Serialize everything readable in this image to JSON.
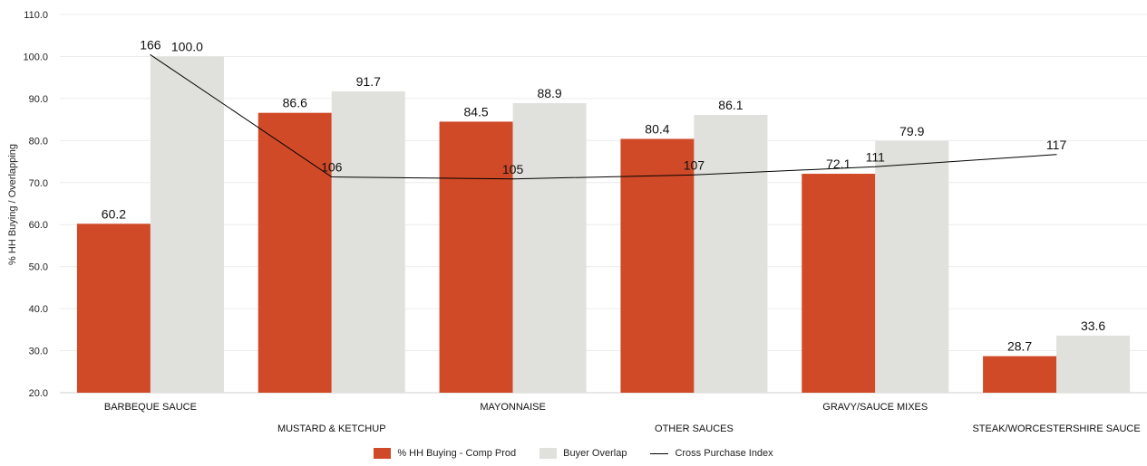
{
  "chart_data": {
    "type": "bar",
    "y_axis_label": "% HH Buying / Overlapping",
    "ylim": [
      20,
      110
    ],
    "ytick_step": 10,
    "categories": [
      "BARBEQUE SAUCE",
      "MUSTARD & KETCHUP",
      "MAYONNAISE",
      "OTHER SAUCES",
      "GRAVY/SAUCE MIXES",
      "STEAK/WORCESTERSHIRE SAUCE"
    ],
    "category_label_rows": [
      "top",
      "bottom",
      "top",
      "bottom",
      "top",
      "bottom"
    ],
    "series": [
      {
        "name": "% HH Buying - Comp Prod",
        "kind": "bar",
        "color": "#d04a28",
        "values": [
          60.2,
          86.6,
          84.5,
          80.4,
          72.1,
          28.7
        ],
        "labels": [
          "60.2",
          "86.6",
          "84.5",
          "80.4",
          "72.1",
          "28.7"
        ]
      },
      {
        "name": "Buyer Overlap",
        "kind": "bar",
        "color": "#e0e0dc",
        "values": [
          100.0,
          91.7,
          88.9,
          86.1,
          79.9,
          33.6
        ],
        "labels": [
          "100.0",
          "91.7",
          "88.9",
          "86.1",
          "79.9",
          "33.6"
        ]
      },
      {
        "name": "Cross Purchase Index",
        "kind": "line",
        "color": "#000000",
        "values": [
          166,
          106,
          105,
          107,
          111,
          117
        ],
        "labels": [
          "166",
          "106",
          "105",
          "107",
          "111",
          "117"
        ],
        "ylim": [
          0,
          170
        ]
      }
    ],
    "legend_position": "bottom-center"
  }
}
